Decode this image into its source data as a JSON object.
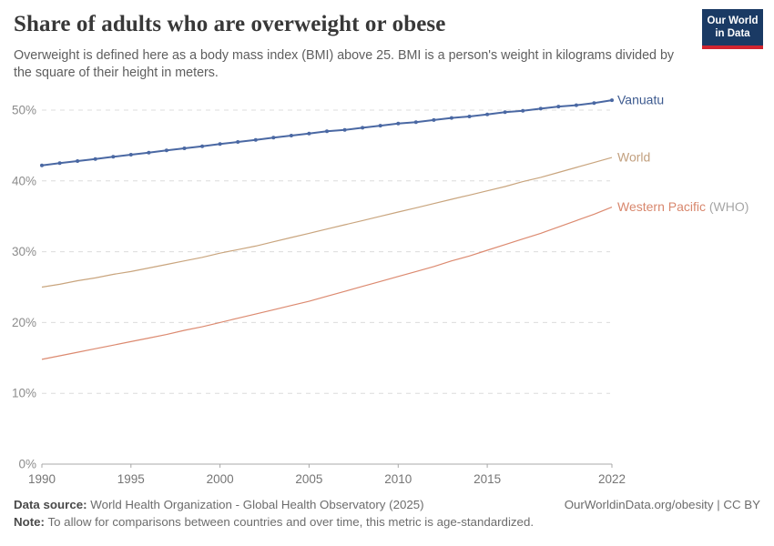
{
  "header": {
    "title": "Share of adults who are overweight or obese",
    "subtitle": "Overweight is defined here as a body mass index (BMI) above 25. BMI is a person's weight in kilograms divided by the square of their height in meters."
  },
  "logo": {
    "line1": "Our World",
    "line2": "in Data",
    "bg_color": "#1a3a64",
    "stripe_color": "#d1242f"
  },
  "colors": {
    "grid": "#dcdcdc",
    "axis": "#a8a8a8",
    "x_tick_label": "#757575",
    "y_tick_label": "#8c8c8c"
  },
  "chart_data": {
    "type": "line",
    "title": "Share of adults who are overweight or obese",
    "xlabel": "",
    "ylabel": "",
    "ylim": [
      0,
      55
    ],
    "yticks": [
      0,
      10,
      20,
      30,
      40,
      50
    ],
    "ytick_suffix": "%",
    "xticks": [
      1990,
      1995,
      2000,
      2005,
      2010,
      2015,
      2022
    ],
    "grid": "horizontal-dashed",
    "legend_position": "end-of-line-labels",
    "x": [
      1990,
      1991,
      1992,
      1993,
      1994,
      1995,
      1996,
      1997,
      1998,
      1999,
      2000,
      2001,
      2002,
      2003,
      2004,
      2005,
      2006,
      2007,
      2008,
      2009,
      2010,
      2011,
      2012,
      2013,
      2014,
      2015,
      2016,
      2017,
      2018,
      2019,
      2020,
      2021,
      2022
    ],
    "series": [
      {
        "id": "vanuatu",
        "name": "Vanuatu",
        "color": "#4a68a3",
        "label_color": "#3d5a8f",
        "marker": true,
        "values": [
          42.2,
          42.5,
          42.8,
          43.1,
          43.4,
          43.7,
          44.0,
          44.3,
          44.6,
          44.9,
          45.2,
          45.5,
          45.8,
          46.1,
          46.4,
          46.7,
          47.0,
          47.2,
          47.5,
          47.8,
          48.1,
          48.3,
          48.6,
          48.9,
          49.1,
          49.4,
          49.7,
          49.9,
          50.2,
          50.5,
          50.7,
          51.0,
          51.4
        ]
      },
      {
        "id": "world",
        "name": "World",
        "color": "#c9a57e",
        "label_color": "#c2a07f",
        "marker": false,
        "values": [
          25.0,
          25.4,
          25.9,
          26.3,
          26.8,
          27.2,
          27.7,
          28.2,
          28.7,
          29.2,
          29.8,
          30.3,
          30.8,
          31.4,
          32.0,
          32.6,
          33.2,
          33.8,
          34.4,
          35.0,
          35.6,
          36.2,
          36.8,
          37.4,
          38.0,
          38.6,
          39.2,
          39.9,
          40.5,
          41.2,
          41.9,
          42.6,
          43.3
        ]
      },
      {
        "id": "western-pacific",
        "name": "Western Pacific",
        "suffix": " (WHO)",
        "color": "#dc8a70",
        "label_color": "#d8876d",
        "suffix_color": "#a6a6a6",
        "marker": false,
        "values": [
          14.8,
          15.3,
          15.8,
          16.3,
          16.8,
          17.3,
          17.8,
          18.3,
          18.9,
          19.4,
          20.0,
          20.6,
          21.2,
          21.8,
          22.4,
          23.0,
          23.7,
          24.4,
          25.1,
          25.8,
          26.5,
          27.2,
          27.9,
          28.7,
          29.4,
          30.2,
          31.0,
          31.8,
          32.6,
          33.5,
          34.4,
          35.3,
          36.3
        ]
      }
    ]
  },
  "footer": {
    "datasource_label": "Data source:",
    "datasource_text": " World Health Organization - Global Health Observatory (2025)",
    "rights": "OurWorldinData.org/obesity | CC BY",
    "note_label": "Note:",
    "note_text": " To allow for comparisons between countries and over time, this metric is age-standardized."
  }
}
